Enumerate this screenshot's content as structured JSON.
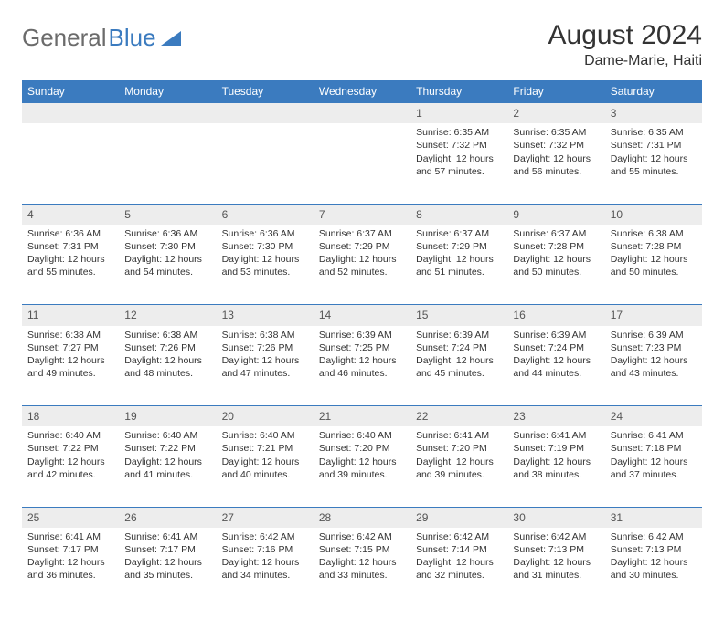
{
  "logo": {
    "text1": "General",
    "text2": "Blue"
  },
  "title": "August 2024",
  "location": "Dame-Marie, Haiti",
  "colors": {
    "header_bg": "#3b7bbf",
    "header_fg": "#ffffff",
    "daynum_bg": "#ededed",
    "text": "#333333",
    "divider": "#3b7bbf",
    "page_bg": "#ffffff",
    "logo_gray": "#6b6b6b",
    "logo_blue": "#3b7bbf"
  },
  "dayHeaders": [
    "Sunday",
    "Monday",
    "Tuesday",
    "Wednesday",
    "Thursday",
    "Friday",
    "Saturday"
  ],
  "startOffset": 4,
  "days": [
    {
      "n": 1,
      "sunrise": "6:35 AM",
      "sunset": "7:32 PM",
      "daylight": "12 hours and 57 minutes."
    },
    {
      "n": 2,
      "sunrise": "6:35 AM",
      "sunset": "7:32 PM",
      "daylight": "12 hours and 56 minutes."
    },
    {
      "n": 3,
      "sunrise": "6:35 AM",
      "sunset": "7:31 PM",
      "daylight": "12 hours and 55 minutes."
    },
    {
      "n": 4,
      "sunrise": "6:36 AM",
      "sunset": "7:31 PM",
      "daylight": "12 hours and 55 minutes."
    },
    {
      "n": 5,
      "sunrise": "6:36 AM",
      "sunset": "7:30 PM",
      "daylight": "12 hours and 54 minutes."
    },
    {
      "n": 6,
      "sunrise": "6:36 AM",
      "sunset": "7:30 PM",
      "daylight": "12 hours and 53 minutes."
    },
    {
      "n": 7,
      "sunrise": "6:37 AM",
      "sunset": "7:29 PM",
      "daylight": "12 hours and 52 minutes."
    },
    {
      "n": 8,
      "sunrise": "6:37 AM",
      "sunset": "7:29 PM",
      "daylight": "12 hours and 51 minutes."
    },
    {
      "n": 9,
      "sunrise": "6:37 AM",
      "sunset": "7:28 PM",
      "daylight": "12 hours and 50 minutes."
    },
    {
      "n": 10,
      "sunrise": "6:38 AM",
      "sunset": "7:28 PM",
      "daylight": "12 hours and 50 minutes."
    },
    {
      "n": 11,
      "sunrise": "6:38 AM",
      "sunset": "7:27 PM",
      "daylight": "12 hours and 49 minutes."
    },
    {
      "n": 12,
      "sunrise": "6:38 AM",
      "sunset": "7:26 PM",
      "daylight": "12 hours and 48 minutes."
    },
    {
      "n": 13,
      "sunrise": "6:38 AM",
      "sunset": "7:26 PM",
      "daylight": "12 hours and 47 minutes."
    },
    {
      "n": 14,
      "sunrise": "6:39 AM",
      "sunset": "7:25 PM",
      "daylight": "12 hours and 46 minutes."
    },
    {
      "n": 15,
      "sunrise": "6:39 AM",
      "sunset": "7:24 PM",
      "daylight": "12 hours and 45 minutes."
    },
    {
      "n": 16,
      "sunrise": "6:39 AM",
      "sunset": "7:24 PM",
      "daylight": "12 hours and 44 minutes."
    },
    {
      "n": 17,
      "sunrise": "6:39 AM",
      "sunset": "7:23 PM",
      "daylight": "12 hours and 43 minutes."
    },
    {
      "n": 18,
      "sunrise": "6:40 AM",
      "sunset": "7:22 PM",
      "daylight": "12 hours and 42 minutes."
    },
    {
      "n": 19,
      "sunrise": "6:40 AM",
      "sunset": "7:22 PM",
      "daylight": "12 hours and 41 minutes."
    },
    {
      "n": 20,
      "sunrise": "6:40 AM",
      "sunset": "7:21 PM",
      "daylight": "12 hours and 40 minutes."
    },
    {
      "n": 21,
      "sunrise": "6:40 AM",
      "sunset": "7:20 PM",
      "daylight": "12 hours and 39 minutes."
    },
    {
      "n": 22,
      "sunrise": "6:41 AM",
      "sunset": "7:20 PM",
      "daylight": "12 hours and 39 minutes."
    },
    {
      "n": 23,
      "sunrise": "6:41 AM",
      "sunset": "7:19 PM",
      "daylight": "12 hours and 38 minutes."
    },
    {
      "n": 24,
      "sunrise": "6:41 AM",
      "sunset": "7:18 PM",
      "daylight": "12 hours and 37 minutes."
    },
    {
      "n": 25,
      "sunrise": "6:41 AM",
      "sunset": "7:17 PM",
      "daylight": "12 hours and 36 minutes."
    },
    {
      "n": 26,
      "sunrise": "6:41 AM",
      "sunset": "7:17 PM",
      "daylight": "12 hours and 35 minutes."
    },
    {
      "n": 27,
      "sunrise": "6:42 AM",
      "sunset": "7:16 PM",
      "daylight": "12 hours and 34 minutes."
    },
    {
      "n": 28,
      "sunrise": "6:42 AM",
      "sunset": "7:15 PM",
      "daylight": "12 hours and 33 minutes."
    },
    {
      "n": 29,
      "sunrise": "6:42 AM",
      "sunset": "7:14 PM",
      "daylight": "12 hours and 32 minutes."
    },
    {
      "n": 30,
      "sunrise": "6:42 AM",
      "sunset": "7:13 PM",
      "daylight": "12 hours and 31 minutes."
    },
    {
      "n": 31,
      "sunrise": "6:42 AM",
      "sunset": "7:13 PM",
      "daylight": "12 hours and 30 minutes."
    }
  ],
  "labels": {
    "sunrise": "Sunrise:",
    "sunset": "Sunset:",
    "daylight": "Daylight:"
  }
}
